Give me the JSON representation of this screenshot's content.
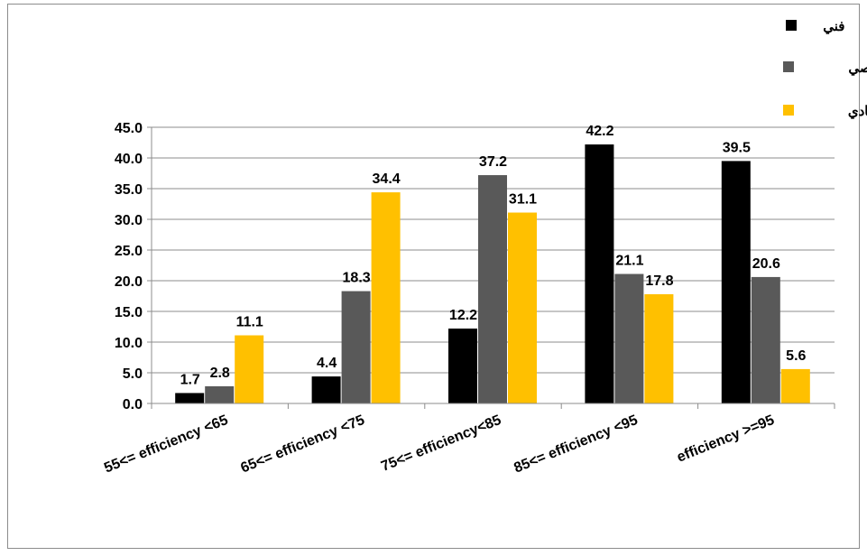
{
  "chart_data": {
    "type": "bar",
    "categories": [
      "55<= efficiency <65",
      "65<= efficiency <75",
      "75<= efficiency<85",
      "85<= efficiency <95",
      "efficiency >=95"
    ],
    "series": [
      {
        "name": "فني",
        "color": "#000000",
        "values": [
          1.7,
          4.4,
          12.2,
          42.2,
          39.5
        ]
      },
      {
        "name": "خصيصي",
        "color": "#595959",
        "values": [
          2.8,
          18.3,
          37.2,
          21.1,
          20.6
        ]
      },
      {
        "name": "اقتصادي",
        "color": "#ffc000",
        "values": [
          11.1,
          34.4,
          31.1,
          17.8,
          5.6
        ]
      }
    ],
    "ylim": [
      0,
      45
    ],
    "yticks": [
      "0.0",
      "5.0",
      "10.0",
      "15.0",
      "20.0",
      "25.0",
      "30.0",
      "35.0",
      "40.0",
      "45.0"
    ],
    "value_labels": [
      [
        "1.7",
        "4.4",
        "12.2",
        "42.2",
        "39.5"
      ],
      [
        "2.8",
        "18.3",
        "37.2",
        "21.1",
        "20.6"
      ],
      [
        "11.1",
        "34.4",
        "31.1",
        "17.8",
        "5.6"
      ]
    ],
    "grid": true,
    "legend_position": "top-right",
    "title": "",
    "xlabel": "",
    "ylabel": ""
  }
}
